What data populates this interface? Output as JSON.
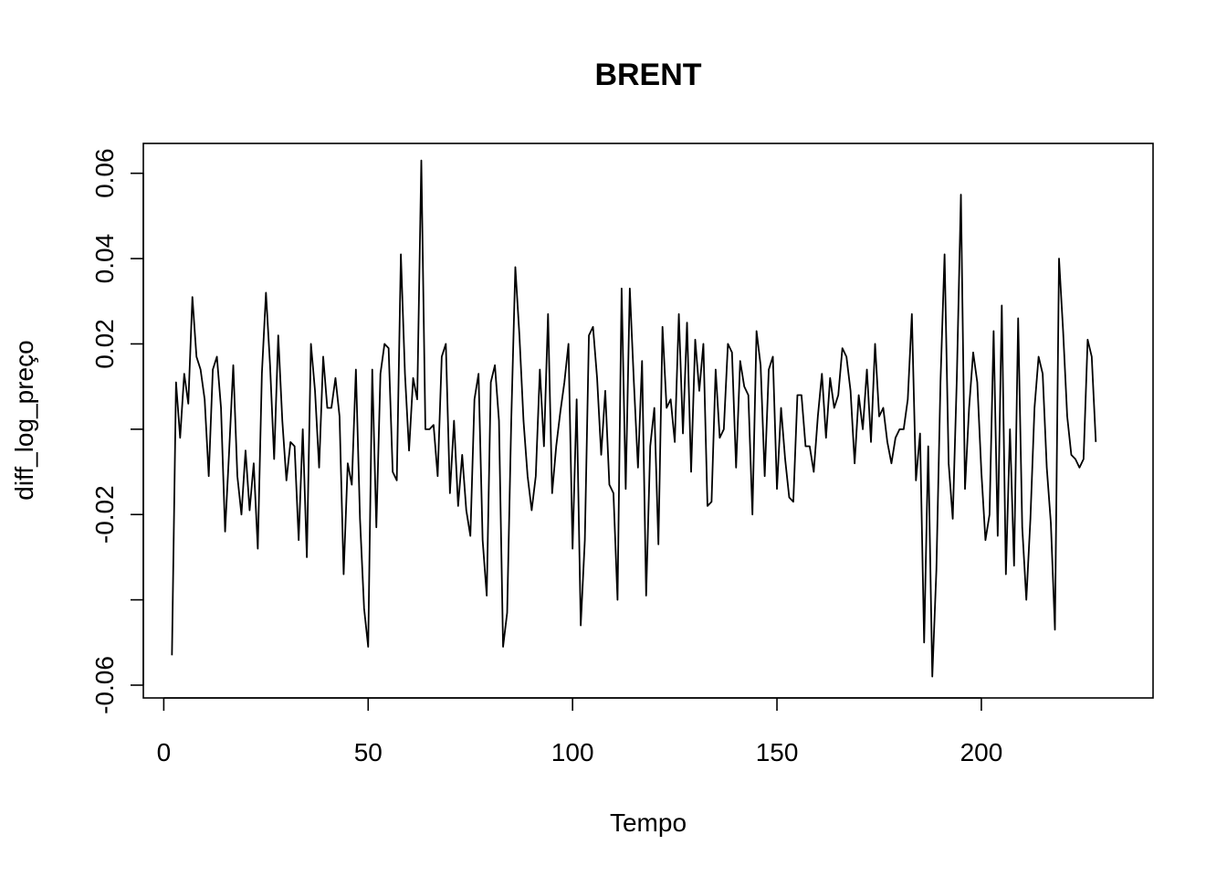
{
  "chart_data": {
    "type": "line",
    "title": "BRENT",
    "xlabel": "Tempo",
    "ylabel": "diff_log_preço",
    "xlim": [
      -5,
      242
    ],
    "ylim": [
      -0.063,
      0.067
    ],
    "x_ticks": [
      0,
      50,
      100,
      150,
      200
    ],
    "x_tick_labels": [
      "0",
      "50",
      "100",
      "150",
      "200"
    ],
    "y_ticks": [
      -0.06,
      -0.04,
      -0.02,
      0.0,
      0.02,
      0.04,
      0.06
    ],
    "y_tick_labels": [
      "-0.06",
      "",
      "-0.02",
      "",
      "0.02",
      "0.04",
      "0.06"
    ],
    "grid": false,
    "legend": "none",
    "line_color": "#000000",
    "series": [
      {
        "x_start": 2,
        "x_step": 1,
        "values": [
          -0.053,
          0.011,
          -0.002,
          0.013,
          0.006,
          0.031,
          0.017,
          0.014,
          0.007,
          -0.011,
          0.014,
          0.017,
          0.005,
          -0.024,
          -0.005,
          0.015,
          -0.011,
          -0.02,
          -0.005,
          -0.019,
          -0.008,
          -0.028,
          0.013,
          0.032,
          0.015,
          -0.007,
          0.022,
          0.002,
          -0.012,
          -0.003,
          -0.004,
          -0.026,
          0.0,
          -0.03,
          0.02,
          0.009,
          -0.009,
          0.017,
          0.005,
          0.005,
          0.012,
          0.003,
          -0.034,
          -0.008,
          -0.013,
          0.014,
          -0.021,
          -0.042,
          -0.051,
          0.014,
          -0.023,
          0.013,
          0.02,
          0.019,
          -0.01,
          -0.012,
          0.041,
          0.013,
          -0.005,
          0.012,
          0.007,
          0.063,
          0.0,
          0.0,
          0.001,
          -0.011,
          0.017,
          0.02,
          -0.015,
          0.002,
          -0.018,
          -0.006,
          -0.019,
          -0.025,
          0.007,
          0.013,
          -0.026,
          -0.039,
          0.011,
          0.015,
          0.002,
          -0.051,
          -0.043,
          0.002,
          0.038,
          0.022,
          0.002,
          -0.011,
          -0.019,
          -0.011,
          0.014,
          -0.004,
          0.027,
          -0.015,
          -0.004,
          0.004,
          0.011,
          0.02,
          -0.028,
          0.007,
          -0.046,
          -0.026,
          0.022,
          0.024,
          0.012,
          -0.006,
          0.009,
          -0.013,
          -0.015,
          -0.04,
          0.033,
          -0.014,
          0.033,
          0.011,
          -0.009,
          0.016,
          -0.039,
          -0.004,
          0.005,
          -0.027,
          0.024,
          0.005,
          0.007,
          -0.003,
          0.027,
          -0.001,
          0.025,
          -0.01,
          0.021,
          0.009,
          0.02,
          -0.018,
          -0.017,
          0.014,
          -0.002,
          0.0,
          0.02,
          0.018,
          -0.009,
          0.016,
          0.01,
          0.008,
          -0.02,
          0.023,
          0.015,
          -0.011,
          0.014,
          0.017,
          -0.014,
          0.005,
          -0.007,
          -0.016,
          -0.017,
          0.008,
          0.008,
          -0.004,
          -0.004,
          -0.01,
          0.003,
          0.013,
          -0.002,
          0.012,
          0.005,
          0.008,
          0.019,
          0.017,
          0.009,
          -0.008,
          0.008,
          0.0,
          0.014,
          -0.003,
          0.02,
          0.003,
          0.005,
          -0.003,
          -0.008,
          -0.002,
          0.0,
          0.0,
          0.007,
          0.027,
          -0.012,
          -0.001,
          -0.05,
          -0.004,
          -0.058,
          -0.033,
          0.011,
          0.041,
          -0.008,
          -0.021,
          0.012,
          0.055,
          -0.014,
          0.005,
          0.018,
          0.011,
          -0.01,
          -0.026,
          -0.02,
          0.023,
          -0.025,
          0.029,
          -0.034,
          0.0,
          -0.032,
          0.026,
          -0.023,
          -0.04,
          -0.021,
          0.005,
          0.017,
          0.013,
          -0.009,
          -0.022,
          -0.047,
          0.04,
          0.023,
          0.003,
          -0.006,
          -0.007,
          -0.009,
          -0.007,
          0.021,
          0.017,
          -0.003
        ]
      }
    ]
  }
}
